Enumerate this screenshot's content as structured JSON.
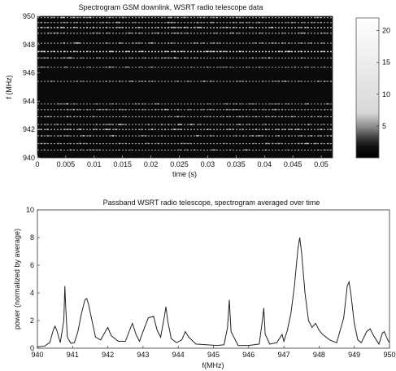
{
  "chart_data": [
    {
      "type": "heatmap",
      "title": "Spectrogram GSM downlink, WSRT radio telescope data",
      "xlabel": "time (s)",
      "ylabel": "f (MHz)",
      "xlim": [
        0,
        0.052
      ],
      "ylim": [
        940,
        950
      ],
      "x_ticks": [
        "0",
        "0.005",
        "0.01",
        "0.015",
        "0.02",
        "0.025",
        "0.03",
        "0.035",
        "0.04",
        "0.045",
        "0.05"
      ],
      "y_ticks": [
        "940",
        "942",
        "944",
        "946",
        "948",
        "950"
      ],
      "background_color": "#0a0a0a",
      "signal_lines_mhz": [
        {
          "f": 949.9,
          "level": 0.55
        },
        {
          "f": 949.55,
          "level": 0.5
        },
        {
          "f": 949.2,
          "level": 0.75
        },
        {
          "f": 948.8,
          "level": 0.6
        },
        {
          "f": 948.1,
          "level": 0.55
        },
        {
          "f": 947.5,
          "level": 0.95
        },
        {
          "f": 947.05,
          "level": 0.5
        },
        {
          "f": 946.4,
          "level": 0.45
        },
        {
          "f": 945.4,
          "level": 0.5
        },
        {
          "f": 943.8,
          "level": 0.45
        },
        {
          "f": 943.4,
          "level": 0.5
        },
        {
          "f": 942.9,
          "level": 0.5
        },
        {
          "f": 942.35,
          "level": 0.55
        },
        {
          "f": 942.0,
          "level": 0.7
        },
        {
          "f": 941.55,
          "level": 0.55
        },
        {
          "f": 941.0,
          "level": 0.5
        },
        {
          "f": 940.55,
          "level": 0.45
        }
      ],
      "colorbar": {
        "range": [
          0,
          22
        ],
        "ticks": [
          "5",
          "10",
          "15",
          "20"
        ],
        "tick_values": [
          5,
          10,
          15,
          20
        ]
      },
      "grid": false
    },
    {
      "type": "line",
      "title": "Passband WSRT radio telescope, spectrogram averaged over time",
      "xlabel": "f(MHz)",
      "ylabel": "power (normalized by average)",
      "xlim": [
        940,
        950
      ],
      "ylim": [
        0,
        10
      ],
      "x_ticks": [
        "940",
        "941",
        "942",
        "943",
        "944",
        "945",
        "946",
        "947",
        "948",
        "949",
        "950"
      ],
      "y_ticks": [
        "0",
        "2",
        "4",
        "6",
        "8",
        "10"
      ],
      "grid": false,
      "series": [
        {
          "color": "#222222",
          "x": [
            940.0,
            940.2,
            940.35,
            940.45,
            940.5,
            940.55,
            940.65,
            940.75,
            940.78,
            940.8,
            940.85,
            940.95,
            941.05,
            941.15,
            941.25,
            941.35,
            941.4,
            941.45,
            941.55,
            941.65,
            941.8,
            941.95,
            942.0,
            942.1,
            942.3,
            942.5,
            942.65,
            942.7,
            942.8,
            942.9,
            943.0,
            943.15,
            943.3,
            943.4,
            943.5,
            943.6,
            943.65,
            943.7,
            943.8,
            943.95,
            944.1,
            944.2,
            944.3,
            944.5,
            944.8,
            945.1,
            945.3,
            945.4,
            945.45,
            945.5,
            945.7,
            946.0,
            946.3,
            946.4,
            946.43,
            946.47,
            946.6,
            946.8,
            946.9,
            946.95,
            947.0,
            947.1,
            947.2,
            947.3,
            947.4,
            947.45,
            947.5,
            947.6,
            947.7,
            947.8,
            947.9,
            948.0,
            948.1,
            948.3,
            948.5,
            948.7,
            948.8,
            948.85,
            948.9,
            949.0,
            949.1,
            949.2,
            949.35,
            949.45,
            949.55,
            949.7,
            949.8,
            949.85,
            949.95,
            950.0
          ],
          "y": [
            0.1,
            0.15,
            0.4,
            1.3,
            1.6,
            1.3,
            0.4,
            2.0,
            4.5,
            3.2,
            0.8,
            0.35,
            0.4,
            1.2,
            2.5,
            3.5,
            3.6,
            3.2,
            2.0,
            0.8,
            0.6,
            1.3,
            1.5,
            0.9,
            0.5,
            0.5,
            1.5,
            1.8,
            1.0,
            0.5,
            1.2,
            2.2,
            2.3,
            1.3,
            0.8,
            2.2,
            3.0,
            2.0,
            0.7,
            0.4,
            0.6,
            1.2,
            0.8,
            0.3,
            0.25,
            0.2,
            0.25,
            1.5,
            3.5,
            1.2,
            0.2,
            0.2,
            0.3,
            2.2,
            2.9,
            1.0,
            0.3,
            0.4,
            0.8,
            1.0,
            0.5,
            1.3,
            2.5,
            4.5,
            7.2,
            8.0,
            7.0,
            4.0,
            2.0,
            1.5,
            1.8,
            1.3,
            1.0,
            0.6,
            0.4,
            2.2,
            4.5,
            4.8,
            4.0,
            1.8,
            0.6,
            0.4,
            1.2,
            1.4,
            0.9,
            0.3,
            1.1,
            1.2,
            0.6,
            0.4
          ]
        }
      ]
    }
  ]
}
